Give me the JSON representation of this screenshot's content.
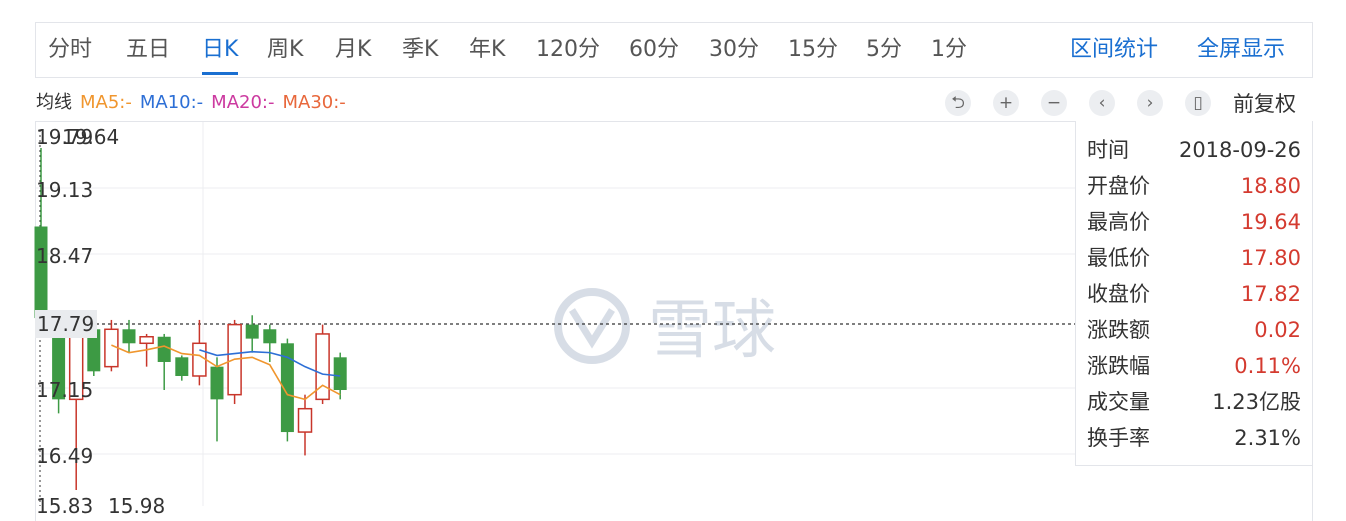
{
  "tabs": [
    "分时",
    "五日",
    "日K",
    "周K",
    "月K",
    "季K",
    "年K",
    "120分",
    "60分",
    "30分",
    "15分",
    "5分",
    "1分"
  ],
  "active_tab": "日K",
  "right_links": [
    "区间统计",
    "全屏显示"
  ],
  "ma": {
    "label": "均线",
    "ma5": "MA5:-",
    "ma10": "MA10:-",
    "ma20": "MA20:-",
    "ma30": "MA30:-",
    "colors": {
      "ma5": "#f0962e",
      "ma10": "#2d6fd6",
      "ma20": "#cc3aa0",
      "ma30": "#e8683c"
    }
  },
  "controls": {
    "icons": [
      "undo-icon",
      "zoom-in-icon",
      "zoom-out-icon",
      "prev-icon",
      "next-icon",
      "candle-icon"
    ],
    "glyphs": [
      "⮌",
      "+",
      "−",
      "‹",
      "›",
      "▯"
    ],
    "adjust_label": "前复权"
  },
  "y_axis": {
    "ticks": [
      "19.79",
      "19.13",
      "18.47",
      "17.79",
      "17.15",
      "16.49",
      "15.83"
    ],
    "high_label": "19.64",
    "low_label": "15.98",
    "current_price": "17.79"
  },
  "watermark": "雪球",
  "info_panel": [
    {
      "key": "时间",
      "value": "2018-09-26",
      "tone": "neutral"
    },
    {
      "key": "开盘价",
      "value": "18.80",
      "tone": "up"
    },
    {
      "key": "最高价",
      "value": "19.64",
      "tone": "up"
    },
    {
      "key": "最低价",
      "value": "17.80",
      "tone": "up"
    },
    {
      "key": "收盘价",
      "value": "17.82",
      "tone": "up"
    },
    {
      "key": "涨跌额",
      "value": "0.02",
      "tone": "up"
    },
    {
      "key": "涨跌幅",
      "value": "0.11%",
      "tone": "up"
    },
    {
      "key": "成交量",
      "value": "1.23亿股",
      "tone": "neutral"
    },
    {
      "key": "换手率",
      "value": "2.31%",
      "tone": "neutral"
    }
  ],
  "colors": {
    "up": "#c8352a",
    "down": "#3d9a44",
    "accent": "#1a6fd1"
  },
  "chart_data": {
    "type": "candlestick",
    "y_range": [
      15.83,
      19.79
    ],
    "candles": [
      {
        "o": 18.8,
        "h": 19.64,
        "l": 17.8,
        "c": 17.82,
        "dir": "down"
      },
      {
        "o": 17.8,
        "h": 17.9,
        "l": 16.8,
        "c": 16.95,
        "dir": "down"
      },
      {
        "o": 16.95,
        "h": 17.8,
        "l": 15.98,
        "c": 17.7,
        "dir": "up"
      },
      {
        "o": 17.7,
        "h": 17.75,
        "l": 17.2,
        "c": 17.25,
        "dir": "down"
      },
      {
        "o": 17.3,
        "h": 17.8,
        "l": 17.25,
        "c": 17.7,
        "dir": "up"
      },
      {
        "o": 17.7,
        "h": 17.8,
        "l": 17.45,
        "c": 17.55,
        "dir": "down"
      },
      {
        "o": 17.55,
        "h": 17.65,
        "l": 17.3,
        "c": 17.62,
        "dir": "up"
      },
      {
        "o": 17.62,
        "h": 17.65,
        "l": 17.05,
        "c": 17.35,
        "dir": "down"
      },
      {
        "o": 17.4,
        "h": 17.42,
        "l": 17.15,
        "c": 17.2,
        "dir": "down"
      },
      {
        "o": 17.2,
        "h": 17.8,
        "l": 17.1,
        "c": 17.55,
        "dir": "up"
      },
      {
        "o": 17.3,
        "h": 17.4,
        "l": 16.5,
        "c": 16.95,
        "dir": "down"
      },
      {
        "o": 17.0,
        "h": 17.8,
        "l": 16.9,
        "c": 17.75,
        "dir": "up"
      },
      {
        "o": 17.75,
        "h": 17.85,
        "l": 17.45,
        "c": 17.6,
        "dir": "down"
      },
      {
        "o": 17.7,
        "h": 17.75,
        "l": 17.35,
        "c": 17.55,
        "dir": "down"
      },
      {
        "o": 17.55,
        "h": 17.6,
        "l": 16.5,
        "c": 16.6,
        "dir": "down"
      },
      {
        "o": 16.6,
        "h": 17.0,
        "l": 16.35,
        "c": 16.85,
        "dir": "up"
      },
      {
        "o": 16.95,
        "h": 17.75,
        "l": 16.9,
        "c": 17.65,
        "dir": "up"
      },
      {
        "o": 17.4,
        "h": 17.45,
        "l": 16.95,
        "c": 17.05,
        "dir": "down"
      }
    ],
    "ma5": [
      null,
      null,
      null,
      null,
      17.53,
      17.45,
      17.48,
      17.52,
      17.44,
      17.42,
      17.3,
      17.38,
      17.4,
      17.32,
      17.0,
      16.95,
      17.1,
      17.0
    ],
    "ma10": [
      null,
      null,
      null,
      null,
      null,
      null,
      null,
      null,
      null,
      17.48,
      17.42,
      17.44,
      17.46,
      17.45,
      17.4,
      17.3,
      17.22,
      17.2
    ]
  }
}
